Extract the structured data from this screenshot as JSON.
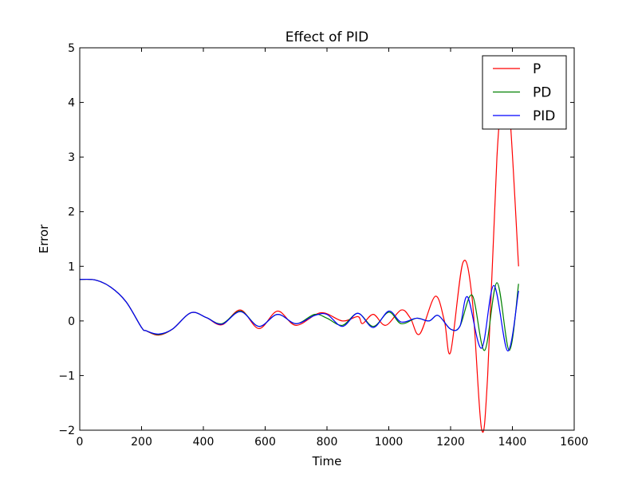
{
  "chart_data": {
    "type": "line",
    "title": "Effect of PID",
    "xlabel": "Time",
    "ylabel": "Error",
    "xlim": [
      0,
      1600
    ],
    "ylim": [
      -2,
      5
    ],
    "xticks": [
      0,
      200,
      400,
      600,
      800,
      1000,
      1200,
      1400,
      1600
    ],
    "yticks": [
      -2,
      -1,
      0,
      1,
      2,
      3,
      4,
      5
    ],
    "xtick_labels": [
      "0",
      "200",
      "400",
      "600",
      "800",
      "1000",
      "1200",
      "1400",
      "1600"
    ],
    "ytick_labels": [
      "−2",
      "−1",
      "0",
      "1",
      "2",
      "3",
      "4",
      "5"
    ],
    "grid": false,
    "legend_position": "top-right",
    "series": [
      {
        "name": "P",
        "color": "#ff0000",
        "points": [
          [
            0,
            0.76
          ],
          [
            50,
            0.75
          ],
          [
            100,
            0.62
          ],
          [
            150,
            0.35
          ],
          [
            200,
            -0.12
          ],
          [
            215,
            -0.18
          ],
          [
            255,
            -0.26
          ],
          [
            300,
            -0.15
          ],
          [
            360,
            0.15
          ],
          [
            410,
            0.06
          ],
          [
            460,
            -0.07
          ],
          [
            520,
            0.2
          ],
          [
            580,
            -0.14
          ],
          [
            640,
            0.18
          ],
          [
            700,
            -0.08
          ],
          [
            780,
            0.15
          ],
          [
            850,
            0.0
          ],
          [
            900,
            0.08
          ],
          [
            915,
            -0.05
          ],
          [
            950,
            0.12
          ],
          [
            990,
            -0.08
          ],
          [
            1040,
            0.2
          ],
          [
            1070,
            0.05
          ],
          [
            1100,
            -0.24
          ],
          [
            1150,
            0.45
          ],
          [
            1180,
            0.0
          ],
          [
            1200,
            -0.57
          ],
          [
            1240,
            1.07
          ],
          [
            1270,
            0.4
          ],
          [
            1300,
            -1.97
          ],
          [
            1320,
            -1.0
          ],
          [
            1350,
            3.0
          ],
          [
            1370,
            4.1
          ],
          [
            1390,
            3.9
          ],
          [
            1420,
            1.0
          ]
        ]
      },
      {
        "name": "PD",
        "color": "#008000",
        "points": [
          [
            0,
            0.76
          ],
          [
            50,
            0.75
          ],
          [
            100,
            0.62
          ],
          [
            150,
            0.35
          ],
          [
            200,
            -0.12
          ],
          [
            215,
            -0.18
          ],
          [
            255,
            -0.25
          ],
          [
            300,
            -0.15
          ],
          [
            360,
            0.15
          ],
          [
            410,
            0.06
          ],
          [
            460,
            -0.05
          ],
          [
            520,
            0.18
          ],
          [
            580,
            -0.1
          ],
          [
            640,
            0.12
          ],
          [
            700,
            -0.05
          ],
          [
            760,
            0.12
          ],
          [
            800,
            0.05
          ],
          [
            850,
            -0.08
          ],
          [
            900,
            0.14
          ],
          [
            950,
            -0.1
          ],
          [
            1000,
            0.16
          ],
          [
            1040,
            -0.05
          ],
          [
            1090,
            0.05
          ],
          [
            1130,
            0.0
          ],
          [
            1160,
            0.1
          ],
          [
            1200,
            -0.15
          ],
          [
            1230,
            -0.1
          ],
          [
            1270,
            0.47
          ],
          [
            1310,
            -0.54
          ],
          [
            1350,
            0.7
          ],
          [
            1390,
            -0.54
          ],
          [
            1420,
            0.68
          ]
        ]
      },
      {
        "name": "PID",
        "color": "#0000ff",
        "points": [
          [
            0,
            0.76
          ],
          [
            50,
            0.75
          ],
          [
            100,
            0.62
          ],
          [
            150,
            0.35
          ],
          [
            200,
            -0.12
          ],
          [
            215,
            -0.18
          ],
          [
            255,
            -0.24
          ],
          [
            300,
            -0.15
          ],
          [
            360,
            0.15
          ],
          [
            410,
            0.06
          ],
          [
            460,
            -0.06
          ],
          [
            520,
            0.17
          ],
          [
            580,
            -0.1
          ],
          [
            640,
            0.12
          ],
          [
            700,
            -0.05
          ],
          [
            760,
            0.1
          ],
          [
            800,
            0.12
          ],
          [
            850,
            -0.1
          ],
          [
            900,
            0.14
          ],
          [
            950,
            -0.12
          ],
          [
            1000,
            0.18
          ],
          [
            1040,
            -0.02
          ],
          [
            1090,
            0.05
          ],
          [
            1130,
            0.0
          ],
          [
            1160,
            0.1
          ],
          [
            1200,
            -0.15
          ],
          [
            1230,
            -0.1
          ],
          [
            1255,
            0.44
          ],
          [
            1300,
            -0.5
          ],
          [
            1340,
            0.65
          ],
          [
            1385,
            -0.55
          ],
          [
            1420,
            0.55
          ]
        ]
      }
    ]
  }
}
